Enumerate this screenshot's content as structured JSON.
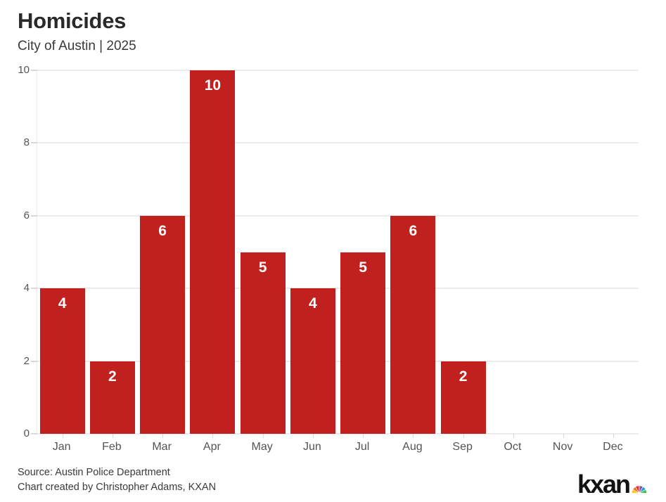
{
  "header": {
    "title": "Homicides",
    "subtitle": "City of Austin | 2025"
  },
  "chart_data": {
    "type": "bar",
    "title": "Homicides",
    "subtitle": "City of Austin | 2025",
    "categories": [
      "Jan",
      "Feb",
      "Mar",
      "Apr",
      "May",
      "Jun",
      "Jul",
      "Aug",
      "Sep",
      "Oct",
      "Nov",
      "Dec"
    ],
    "values": [
      4,
      2,
      6,
      10,
      5,
      4,
      5,
      6,
      2,
      null,
      null,
      null
    ],
    "xlabel": "",
    "ylabel": "",
    "ylim": [
      0,
      10
    ],
    "yticks": [
      0,
      2,
      4,
      6,
      8,
      10
    ],
    "grid": "horizontal",
    "legend": "none",
    "bar_value_labels": "inside-top"
  },
  "colors": {
    "bar": "#c1211e",
    "grid": "#ececec",
    "tick": "#d9d9d9",
    "axis_text": "#545454",
    "value_label": "#ffffff",
    "title_text": "#2a2a2a",
    "footer_text": "#3a3a3a",
    "logo_text": "#121212",
    "peacock": [
      "#fbc912",
      "#f36f21",
      "#ee2d24",
      "#7c5aa7",
      "#1e9fd8",
      "#4bb748"
    ]
  },
  "footer": {
    "source_line": "Source: Austin Police Department",
    "credit_line": "Chart created by Christopher Adams, KXAN",
    "logo_text": "kxan"
  }
}
